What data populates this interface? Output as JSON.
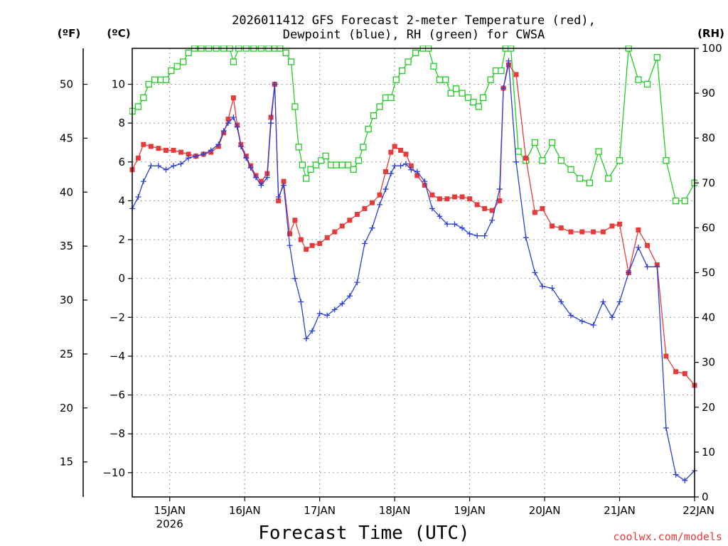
{
  "chart_data": {
    "type": "line",
    "title_line1": "2026011412 GFS Forecast 2-meter Temperature (red),",
    "title_line2": "Dewpoint (blue), RH (green) for CWSA",
    "xlabel": "Forecast Time (UTC)",
    "credit": "coolwx.com/models",
    "unit_f": "(ºF)",
    "unit_c": "(ºC)",
    "unit_rh": "(RH)",
    "x_range_days": [
      14.5,
      22.0
    ],
    "y_celsius_range": [
      -11.25,
      11.85
    ],
    "y_rh_range": [
      0,
      100
    ],
    "x_ticks": [
      {
        "day": 15,
        "label": "15JAN",
        "sublabel": "2026"
      },
      {
        "day": 16,
        "label": "16JAN",
        "sublabel": ""
      },
      {
        "day": 17,
        "label": "17JAN",
        "sublabel": ""
      },
      {
        "day": 18,
        "label": "18JAN",
        "sublabel": ""
      },
      {
        "day": 19,
        "label": "19JAN",
        "sublabel": ""
      },
      {
        "day": 20,
        "label": "20JAN",
        "sublabel": ""
      },
      {
        "day": 21,
        "label": "21JAN",
        "sublabel": ""
      },
      {
        "day": 22,
        "label": "22JAN",
        "sublabel": ""
      }
    ],
    "y_celsius_ticks": [
      10,
      8,
      6,
      4,
      2,
      0,
      -2,
      -4,
      -6,
      -8,
      -10
    ],
    "y_fahrenheit_ticks": [
      50,
      45,
      40,
      35,
      30,
      25,
      20,
      15
    ],
    "y_rh_ticks": [
      100,
      90,
      80,
      70,
      60,
      50,
      40,
      30,
      20,
      10,
      0
    ],
    "colors": {
      "temperature": "#e63b3b",
      "dewpoint": "#2b3fd6",
      "rh": "#22cc22"
    },
    "series": [
      {
        "name": "Temperature",
        "units": "C",
        "points": [
          [
            14.5,
            5.6
          ],
          [
            14.58,
            6.2
          ],
          [
            14.65,
            6.9
          ],
          [
            14.75,
            6.8
          ],
          [
            14.85,
            6.7
          ],
          [
            14.95,
            6.6
          ],
          [
            15.05,
            6.6
          ],
          [
            15.15,
            6.5
          ],
          [
            15.25,
            6.4
          ],
          [
            15.35,
            6.3
          ],
          [
            15.45,
            6.4
          ],
          [
            15.55,
            6.5
          ],
          [
            15.65,
            6.8
          ],
          [
            15.72,
            7.5
          ],
          [
            15.78,
            8.2
          ],
          [
            15.85,
            9.3
          ],
          [
            15.9,
            7.9
          ],
          [
            15.95,
            6.9
          ],
          [
            16.02,
            6.3
          ],
          [
            16.08,
            5.8
          ],
          [
            16.15,
            5.3
          ],
          [
            16.22,
            5.0
          ],
          [
            16.3,
            5.4
          ],
          [
            16.35,
            8.3
          ],
          [
            16.4,
            10.0
          ],
          [
            16.45,
            4.0
          ],
          [
            16.52,
            5.0
          ],
          [
            16.6,
            2.3
          ],
          [
            16.67,
            3.0
          ],
          [
            16.75,
            2.0
          ],
          [
            16.82,
            1.5
          ],
          [
            16.9,
            1.7
          ],
          [
            17.0,
            1.8
          ],
          [
            17.1,
            2.1
          ],
          [
            17.2,
            2.4
          ],
          [
            17.3,
            2.7
          ],
          [
            17.4,
            3.0
          ],
          [
            17.5,
            3.3
          ],
          [
            17.6,
            3.6
          ],
          [
            17.7,
            3.9
          ],
          [
            17.8,
            4.3
          ],
          [
            17.88,
            5.5
          ],
          [
            17.95,
            6.5
          ],
          [
            18.0,
            6.8
          ],
          [
            18.08,
            6.6
          ],
          [
            18.15,
            6.4
          ],
          [
            18.22,
            5.8
          ],
          [
            18.3,
            5.3
          ],
          [
            18.4,
            4.8
          ],
          [
            18.5,
            4.3
          ],
          [
            18.6,
            4.1
          ],
          [
            18.7,
            4.1
          ],
          [
            18.8,
            4.2
          ],
          [
            18.9,
            4.2
          ],
          [
            19.0,
            4.1
          ],
          [
            19.1,
            3.8
          ],
          [
            19.2,
            3.6
          ],
          [
            19.3,
            3.5
          ],
          [
            19.4,
            4.0
          ],
          [
            19.45,
            9.8
          ],
          [
            19.52,
            11.0
          ],
          [
            19.62,
            10.5
          ],
          [
            19.75,
            6.2
          ],
          [
            19.87,
            3.4
          ],
          [
            19.97,
            3.6
          ],
          [
            20.1,
            2.7
          ],
          [
            20.22,
            2.6
          ],
          [
            20.35,
            2.4
          ],
          [
            20.5,
            2.4
          ],
          [
            20.65,
            2.4
          ],
          [
            20.78,
            2.4
          ],
          [
            20.9,
            2.7
          ],
          [
            21.0,
            2.8
          ],
          [
            21.12,
            0.3
          ],
          [
            21.25,
            2.5
          ],
          [
            21.37,
            1.7
          ],
          [
            21.5,
            0.7
          ],
          [
            21.62,
            -4.0
          ],
          [
            21.75,
            -4.8
          ],
          [
            21.87,
            -4.9
          ],
          [
            22.0,
            -5.5
          ]
        ]
      },
      {
        "name": "Dewpoint",
        "units": "C",
        "points": [
          [
            14.5,
            3.6
          ],
          [
            14.58,
            4.2
          ],
          [
            14.65,
            5.0
          ],
          [
            14.75,
            5.8
          ],
          [
            14.85,
            5.8
          ],
          [
            14.95,
            5.6
          ],
          [
            15.05,
            5.8
          ],
          [
            15.15,
            5.9
          ],
          [
            15.25,
            6.2
          ],
          [
            15.35,
            6.3
          ],
          [
            15.45,
            6.4
          ],
          [
            15.55,
            6.6
          ],
          [
            15.65,
            6.9
          ],
          [
            15.72,
            7.6
          ],
          [
            15.78,
            8.0
          ],
          [
            15.85,
            8.3
          ],
          [
            15.9,
            7.8
          ],
          [
            15.95,
            6.8
          ],
          [
            16.02,
            6.2
          ],
          [
            16.08,
            5.7
          ],
          [
            16.15,
            5.2
          ],
          [
            16.22,
            4.8
          ],
          [
            16.3,
            5.2
          ],
          [
            16.35,
            8.0
          ],
          [
            16.4,
            10.0
          ],
          [
            16.45,
            4.2
          ],
          [
            16.52,
            4.8
          ],
          [
            16.6,
            1.7
          ],
          [
            16.67,
            0.0
          ],
          [
            16.75,
            -1.2
          ],
          [
            16.82,
            -3.1
          ],
          [
            16.9,
            -2.7
          ],
          [
            17.0,
            -1.8
          ],
          [
            17.1,
            -1.9
          ],
          [
            17.2,
            -1.6
          ],
          [
            17.3,
            -1.3
          ],
          [
            17.4,
            -0.9
          ],
          [
            17.5,
            -0.2
          ],
          [
            17.6,
            1.8
          ],
          [
            17.7,
            2.6
          ],
          [
            17.8,
            3.8
          ],
          [
            17.88,
            4.6
          ],
          [
            17.95,
            5.4
          ],
          [
            18.0,
            5.8
          ],
          [
            18.08,
            5.8
          ],
          [
            18.15,
            5.9
          ],
          [
            18.22,
            5.6
          ],
          [
            18.3,
            5.5
          ],
          [
            18.4,
            5.0
          ],
          [
            18.5,
            3.6
          ],
          [
            18.6,
            3.2
          ],
          [
            18.7,
            2.8
          ],
          [
            18.8,
            2.8
          ],
          [
            18.9,
            2.6
          ],
          [
            19.0,
            2.3
          ],
          [
            19.1,
            2.2
          ],
          [
            19.2,
            2.2
          ],
          [
            19.3,
            3.0
          ],
          [
            19.4,
            4.6
          ],
          [
            19.45,
            9.8
          ],
          [
            19.52,
            11.2
          ],
          [
            19.62,
            6.0
          ],
          [
            19.75,
            2.1
          ],
          [
            19.87,
            0.3
          ],
          [
            19.97,
            -0.4
          ],
          [
            20.1,
            -0.5
          ],
          [
            20.22,
            -1.2
          ],
          [
            20.35,
            -1.9
          ],
          [
            20.5,
            -2.2
          ],
          [
            20.65,
            -2.4
          ],
          [
            20.78,
            -1.2
          ],
          [
            20.9,
            -2.0
          ],
          [
            21.0,
            -1.2
          ],
          [
            21.12,
            0.3
          ],
          [
            21.25,
            1.6
          ],
          [
            21.37,
            0.6
          ],
          [
            21.5,
            0.6
          ],
          [
            21.62,
            -7.7
          ],
          [
            21.75,
            -10.1
          ],
          [
            21.87,
            -10.4
          ],
          [
            22.0,
            -9.9
          ]
        ]
      },
      {
        "name": "RH",
        "units": "%",
        "points": [
          [
            14.5,
            86
          ],
          [
            14.58,
            87
          ],
          [
            14.65,
            89
          ],
          [
            14.72,
            92
          ],
          [
            14.8,
            93
          ],
          [
            14.88,
            93
          ],
          [
            14.95,
            93
          ],
          [
            15.02,
            95
          ],
          [
            15.1,
            96
          ],
          [
            15.18,
            97
          ],
          [
            15.25,
            99
          ],
          [
            15.33,
            100
          ],
          [
            15.42,
            100
          ],
          [
            15.52,
            100
          ],
          [
            15.62,
            100
          ],
          [
            15.72,
            100
          ],
          [
            15.8,
            100
          ],
          [
            15.85,
            97
          ],
          [
            15.92,
            100
          ],
          [
            16.02,
            100
          ],
          [
            16.12,
            100
          ],
          [
            16.22,
            100
          ],
          [
            16.32,
            100
          ],
          [
            16.4,
            100
          ],
          [
            16.47,
            100
          ],
          [
            16.55,
            99
          ],
          [
            16.62,
            97
          ],
          [
            16.67,
            87
          ],
          [
            16.72,
            78
          ],
          [
            16.77,
            74
          ],
          [
            16.82,
            71
          ],
          [
            16.88,
            73
          ],
          [
            16.95,
            74
          ],
          [
            17.02,
            75
          ],
          [
            17.08,
            76
          ],
          [
            17.15,
            74
          ],
          [
            17.22,
            74
          ],
          [
            17.3,
            74
          ],
          [
            17.38,
            74
          ],
          [
            17.45,
            73
          ],
          [
            17.52,
            75
          ],
          [
            17.58,
            78
          ],
          [
            17.65,
            82
          ],
          [
            17.72,
            85
          ],
          [
            17.8,
            87
          ],
          [
            17.88,
            89
          ],
          [
            17.95,
            89
          ],
          [
            18.02,
            93
          ],
          [
            18.1,
            95
          ],
          [
            18.18,
            97
          ],
          [
            18.28,
            99
          ],
          [
            18.38,
            100
          ],
          [
            18.45,
            100
          ],
          [
            18.52,
            96
          ],
          [
            18.6,
            93
          ],
          [
            18.68,
            93
          ],
          [
            18.75,
            90
          ],
          [
            18.82,
            91
          ],
          [
            18.9,
            90
          ],
          [
            18.98,
            89
          ],
          [
            19.05,
            88
          ],
          [
            19.12,
            87
          ],
          [
            19.18,
            89
          ],
          [
            19.28,
            93
          ],
          [
            19.35,
            95
          ],
          [
            19.42,
            95
          ],
          [
            19.48,
            100
          ],
          [
            19.55,
            100
          ],
          [
            19.65,
            77
          ],
          [
            19.75,
            75
          ],
          [
            19.87,
            79
          ],
          [
            19.97,
            75
          ],
          [
            20.1,
            79
          ],
          [
            20.22,
            75
          ],
          [
            20.35,
            73
          ],
          [
            20.47,
            71
          ],
          [
            20.6,
            70
          ],
          [
            20.72,
            77
          ],
          [
            20.85,
            71
          ],
          [
            21.0,
            75
          ],
          [
            21.12,
            100
          ],
          [
            21.25,
            93
          ],
          [
            21.37,
            92
          ],
          [
            21.5,
            98
          ],
          [
            21.62,
            75
          ],
          [
            21.75,
            66
          ],
          [
            21.87,
            66
          ],
          [
            22.0,
            70
          ]
        ]
      }
    ]
  }
}
